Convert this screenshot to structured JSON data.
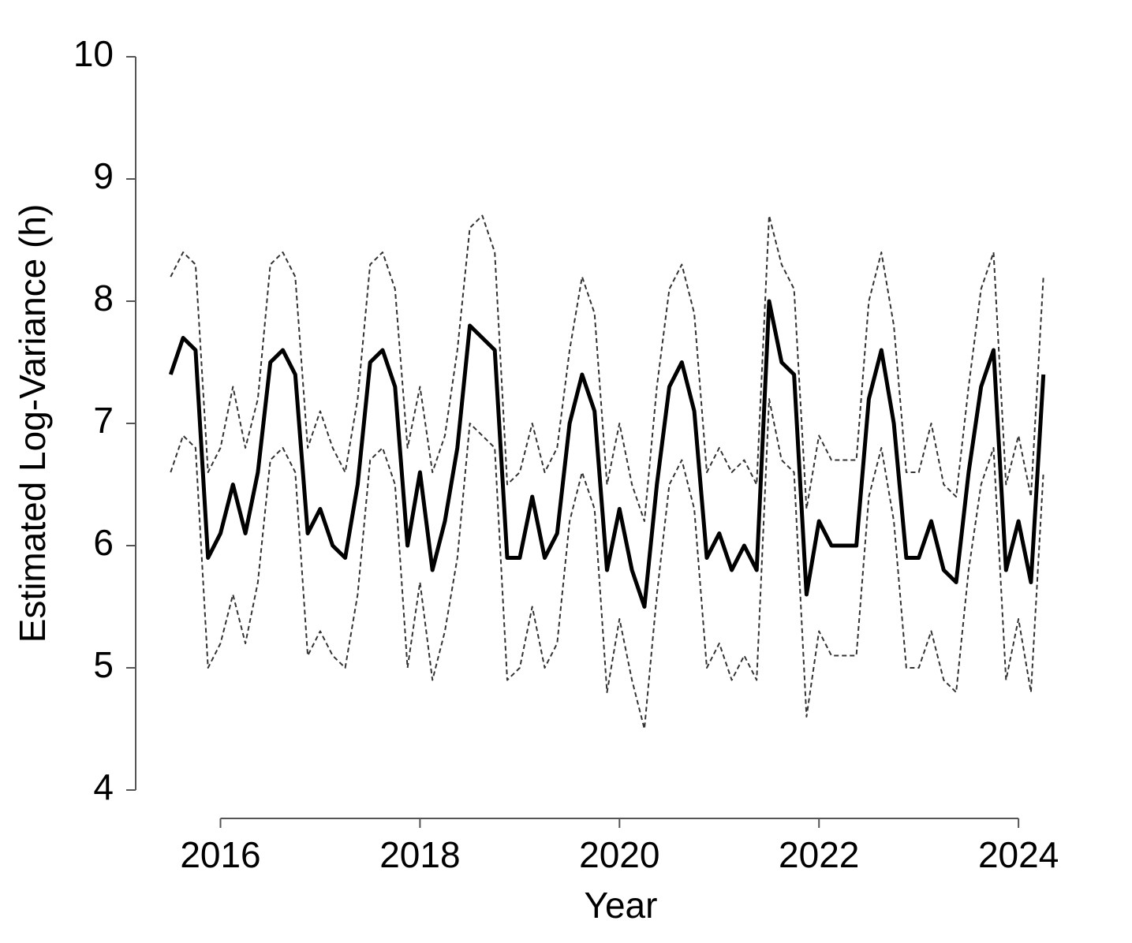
{
  "chart_data": {
    "type": "line",
    "y_label": "Estimated Log-Variance (h)",
    "x_label": "Year",
    "x": [
      2015.5,
      2015.625,
      2015.75,
      2015.875,
      2016,
      2016.125,
      2016.25,
      2016.375,
      2016.5,
      2016.625,
      2016.75,
      2016.875,
      2017,
      2017.125,
      2017.25,
      2017.375,
      2017.5,
      2017.625,
      2017.75,
      2017.875,
      2018,
      2018.125,
      2018.25,
      2018.375,
      2018.5,
      2018.625,
      2018.75,
      2018.875,
      2019,
      2019.125,
      2019.25,
      2019.375,
      2019.5,
      2019.625,
      2019.75,
      2019.875,
      2020,
      2020.125,
      2020.25,
      2020.375,
      2020.5,
      2020.625,
      2020.75,
      2020.875,
      2021,
      2021.125,
      2021.25,
      2021.375,
      2021.5,
      2021.625,
      2021.75,
      2021.875,
      2022,
      2022.125,
      2022.25,
      2022.375,
      2022.5,
      2022.625,
      2022.75,
      2022.875,
      2023,
      2023.125,
      2023.25,
      2023.375,
      2023.5,
      2023.625,
      2023.75,
      2023.875,
      2024,
      2024.125,
      2024.25
    ],
    "series": [
      {
        "color": "#000000",
        "dashed": false,
        "values": [
          7.4,
          7.7,
          7.6,
          5.9,
          6.1,
          6.5,
          6.1,
          6.6,
          7.5,
          7.6,
          7.4,
          6.1,
          6.3,
          6.0,
          5.9,
          6.5,
          7.5,
          7.6,
          7.3,
          6.0,
          6.6,
          5.8,
          6.2,
          6.8,
          7.8,
          7.7,
          7.6,
          5.9,
          5.9,
          6.4,
          5.9,
          6.1,
          7.0,
          7.4,
          7.1,
          5.8,
          6.3,
          5.8,
          5.5,
          6.5,
          7.3,
          7.5,
          7.1,
          5.9,
          6.1,
          5.8,
          6.0,
          5.8,
          8.0,
          7.5,
          7.4,
          5.6,
          6.2,
          6.0,
          6.0,
          6.0,
          7.2,
          7.6,
          7.0,
          5.9,
          5.9,
          6.2,
          5.8,
          5.7,
          6.6,
          7.3,
          7.6,
          5.8,
          6.2,
          5.7,
          7.4
        ]
      },
      {
        "color": "#333333",
        "dashed": true,
        "values": [
          8.2,
          8.4,
          8.3,
          6.6,
          6.8,
          7.3,
          6.8,
          7.2,
          8.3,
          8.4,
          8.2,
          6.8,
          7.1,
          6.8,
          6.6,
          7.2,
          8.3,
          8.4,
          8.1,
          6.8,
          7.3,
          6.6,
          6.9,
          7.6,
          8.6,
          8.7,
          8.4,
          6.5,
          6.6,
          7.0,
          6.6,
          6.8,
          7.6,
          8.2,
          7.9,
          6.5,
          7.0,
          6.5,
          6.2,
          7.3,
          8.1,
          8.3,
          7.9,
          6.6,
          6.8,
          6.6,
          6.7,
          6.5,
          8.7,
          8.3,
          8.1,
          6.3,
          6.9,
          6.7,
          6.7,
          6.7,
          8.0,
          8.4,
          7.8,
          6.6,
          6.6,
          7.0,
          6.5,
          6.4,
          7.3,
          8.1,
          8.4,
          6.5,
          6.9,
          6.4,
          8.2
        ]
      },
      {
        "color": "#333333",
        "dashed": true,
        "values": [
          6.6,
          6.9,
          6.8,
          5.0,
          5.2,
          5.6,
          5.2,
          5.7,
          6.7,
          6.8,
          6.6,
          5.1,
          5.3,
          5.1,
          5.0,
          5.6,
          6.7,
          6.8,
          6.5,
          5.0,
          5.7,
          4.9,
          5.3,
          5.9,
          7.0,
          6.9,
          6.8,
          4.9,
          5.0,
          5.5,
          5.0,
          5.2,
          6.2,
          6.6,
          6.3,
          4.8,
          5.4,
          4.9,
          4.5,
          5.6,
          6.5,
          6.7,
          6.3,
          5.0,
          5.2,
          4.9,
          5.1,
          4.9,
          7.2,
          6.7,
          6.6,
          4.6,
          5.3,
          5.1,
          5.1,
          5.1,
          6.4,
          6.8,
          6.2,
          5.0,
          5.0,
          5.3,
          4.9,
          4.8,
          5.8,
          6.5,
          6.8,
          4.9,
          5.4,
          4.8,
          6.6
        ]
      }
    ],
    "xlim": [
      2015.15,
      2024.6
    ],
    "xticks": [
      2016,
      2018,
      2020,
      2022,
      2024
    ],
    "ylim": [
      4,
      10
    ],
    "yticks": [
      4,
      5,
      6,
      7,
      8,
      9,
      10
    ]
  }
}
